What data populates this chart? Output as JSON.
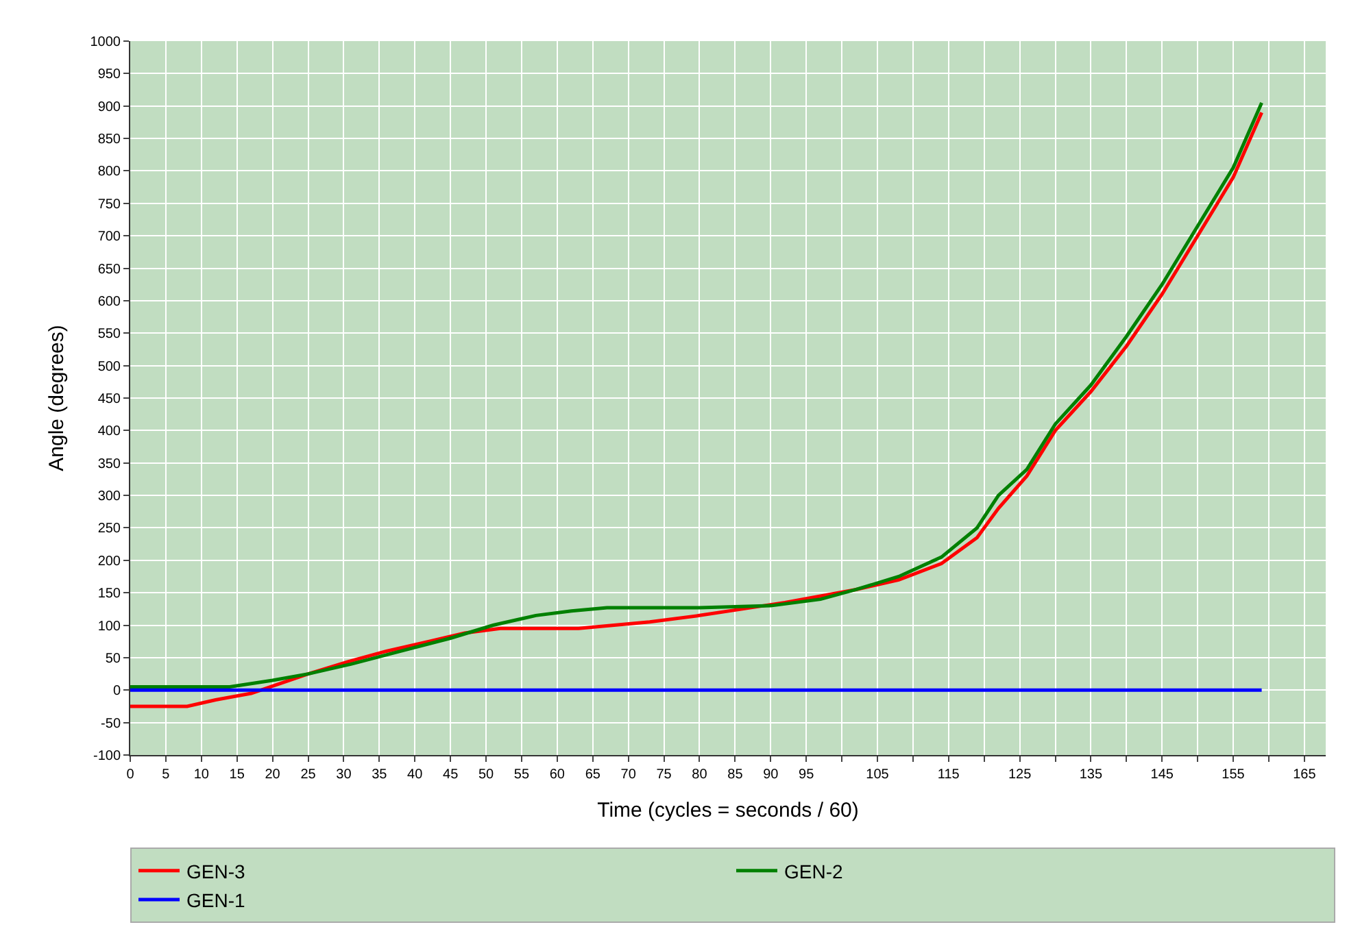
{
  "chart_data": {
    "type": "line",
    "xlabel": "Time (cycles = seconds / 60)",
    "ylabel": "Angle (degrees)",
    "xlim": [
      0,
      168
    ],
    "ylim": [
      -100,
      1000
    ],
    "xticks": [
      0,
      5,
      10,
      15,
      20,
      25,
      30,
      35,
      40,
      45,
      50,
      55,
      60,
      65,
      70,
      75,
      80,
      85,
      90,
      95,
      {
        "value": 100,
        "label": null
      },
      105,
      {
        "value": 110,
        "label": null
      },
      115,
      {
        "value": 120,
        "label": null
      },
      125,
      {
        "value": 130,
        "label": null
      },
      135,
      {
        "value": 140,
        "label": null
      },
      145,
      {
        "value": 150,
        "label": null
      },
      155,
      {
        "value": 160,
        "label": null
      },
      165
    ],
    "yticks": [
      -100,
      -50,
      0,
      50,
      100,
      150,
      200,
      250,
      300,
      350,
      400,
      450,
      500,
      550,
      600,
      650,
      700,
      750,
      800,
      850,
      900,
      950,
      1000
    ],
    "grid": true,
    "legend": "bottom",
    "marker": "none",
    "line_style": "solid",
    "series": [
      {
        "name": "GEN-3",
        "color": "#ff0000",
        "x": [
          0,
          8,
          12,
          17,
          21,
          25,
          31,
          36,
          42,
          47,
          52,
          57,
          63,
          68,
          73,
          80,
          86,
          92,
          97,
          102,
          108,
          114,
          119,
          122,
          126,
          130,
          135,
          140,
          145,
          150,
          155,
          159
        ],
        "values": [
          -25,
          -25,
          -15,
          -5,
          10,
          25,
          45,
          60,
          75,
          88,
          95,
          95,
          95,
          100,
          105,
          115,
          125,
          135,
          145,
          155,
          170,
          195,
          235,
          280,
          330,
          400,
          460,
          530,
          610,
          700,
          790,
          890
        ]
      },
      {
        "name": "GEN-2",
        "color": "#008000",
        "x": [
          0,
          14,
          20,
          25,
          31,
          38,
          45,
          51,
          57,
          62,
          67,
          80,
          90,
          97,
          102,
          108,
          114,
          119,
          122,
          126,
          130,
          135,
          140,
          145,
          150,
          155,
          159
        ],
        "values": [
          5,
          5,
          15,
          25,
          40,
          60,
          80,
          100,
          115,
          122,
          127,
          127,
          130,
          140,
          155,
          175,
          205,
          250,
          300,
          340,
          410,
          470,
          545,
          625,
          715,
          805,
          905
        ]
      },
      {
        "name": "GEN-1",
        "color": "#0000ff",
        "x": [
          0,
          159
        ],
        "values": [
          0,
          0
        ]
      }
    ]
  }
}
